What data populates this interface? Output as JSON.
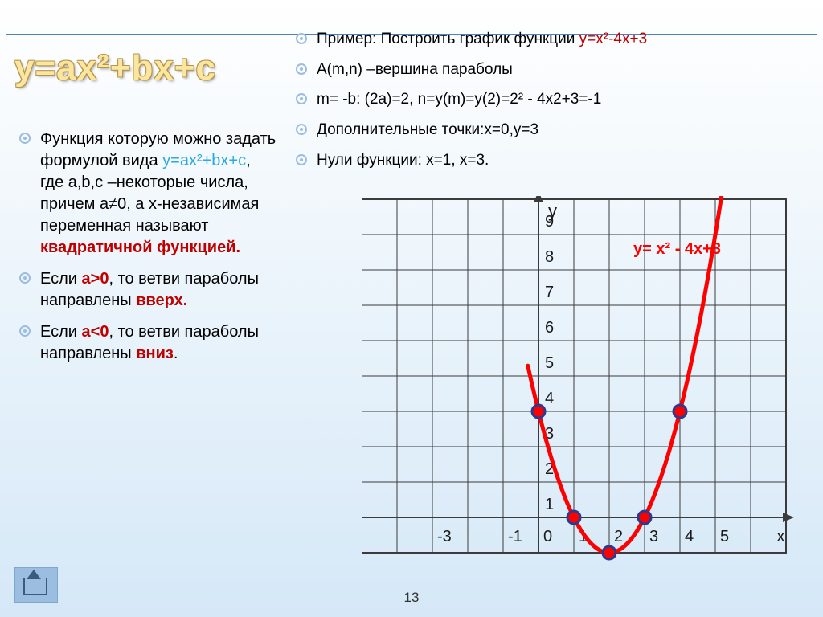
{
  "title": "y=ax²+bx+c",
  "left": {
    "items": [
      {
        "html": "Функция которую можно задать формулой вида <span class='cyan'>y=ax²+bx+c</span>, где a,b,c –некоторые числа, причем a≠0, а х-независимая переменная   называют <span class='red'>квадратичной функцией.</span>"
      },
      {
        "html": "Если <span class='red'>a&gt;0</span>, то ветви параболы направлены <span class='red'>вверх.</span>"
      },
      {
        "html": "Если <span class='red'>a&lt;0</span>, то ветви параболы направлены <span class='red'>вниз</span>."
      }
    ]
  },
  "right": {
    "items": [
      {
        "html": "Пример: Построить график функции <span class='red-nobold'>y=x²-4x+3</span>"
      },
      {
        "html": " A(m,n) –вершина параболы"
      },
      {
        "html": " m= -b: (2a)=2, n=y(m)=y(2)=2² - 4x2+3=-1"
      },
      {
        "html": "Дополнительные точки:x=0,y=3"
      },
      {
        "html": "Нули функции: x=1, x=3."
      }
    ]
  },
  "chart": {
    "grid": {
      "cols": 12,
      "rows": 10,
      "cell": 44
    },
    "stroke": {
      "grid": "#3b3b3b",
      "axis_w": 2,
      "grid_w": 1
    },
    "colors": {
      "curve": "#ff0000",
      "point_fill": "#ff0000",
      "point_stroke": "#2a3b8f",
      "label": "#1a1a1a",
      "eq": "#ff0000"
    },
    "origin_col": 5,
    "x_ticks": [
      {
        "col": 2,
        "label": "-3"
      },
      {
        "col": 4,
        "label": "-1"
      },
      {
        "col": 5,
        "label": "0"
      },
      {
        "col": 6,
        "label": "1"
      },
      {
        "col": 7,
        "label": "2"
      },
      {
        "col": 8,
        "label": "3"
      },
      {
        "col": 9,
        "label": "4"
      },
      {
        "col": 10,
        "label": "5"
      },
      {
        "col": 11.6,
        "label": "x"
      }
    ],
    "y_ticks": [
      1,
      2,
      3,
      4,
      5,
      6,
      7,
      8,
      9
    ],
    "y_axis_label": "y",
    "equation_label": "y= x² - 4x+3",
    "points": [
      {
        "x": 0,
        "y": 3
      },
      {
        "x": 1,
        "y": 0
      },
      {
        "x": 2,
        "y": -1
      },
      {
        "x": 3,
        "y": 0
      },
      {
        "x": 4,
        "y": 3
      }
    ],
    "curve_fn": "x*x - 4*x + 3",
    "curve_width": 5,
    "curve_xmin": -0.3,
    "curve_xmax": 5.3,
    "point_r": 8,
    "label_fontsize": 20
  },
  "page_number": "13"
}
